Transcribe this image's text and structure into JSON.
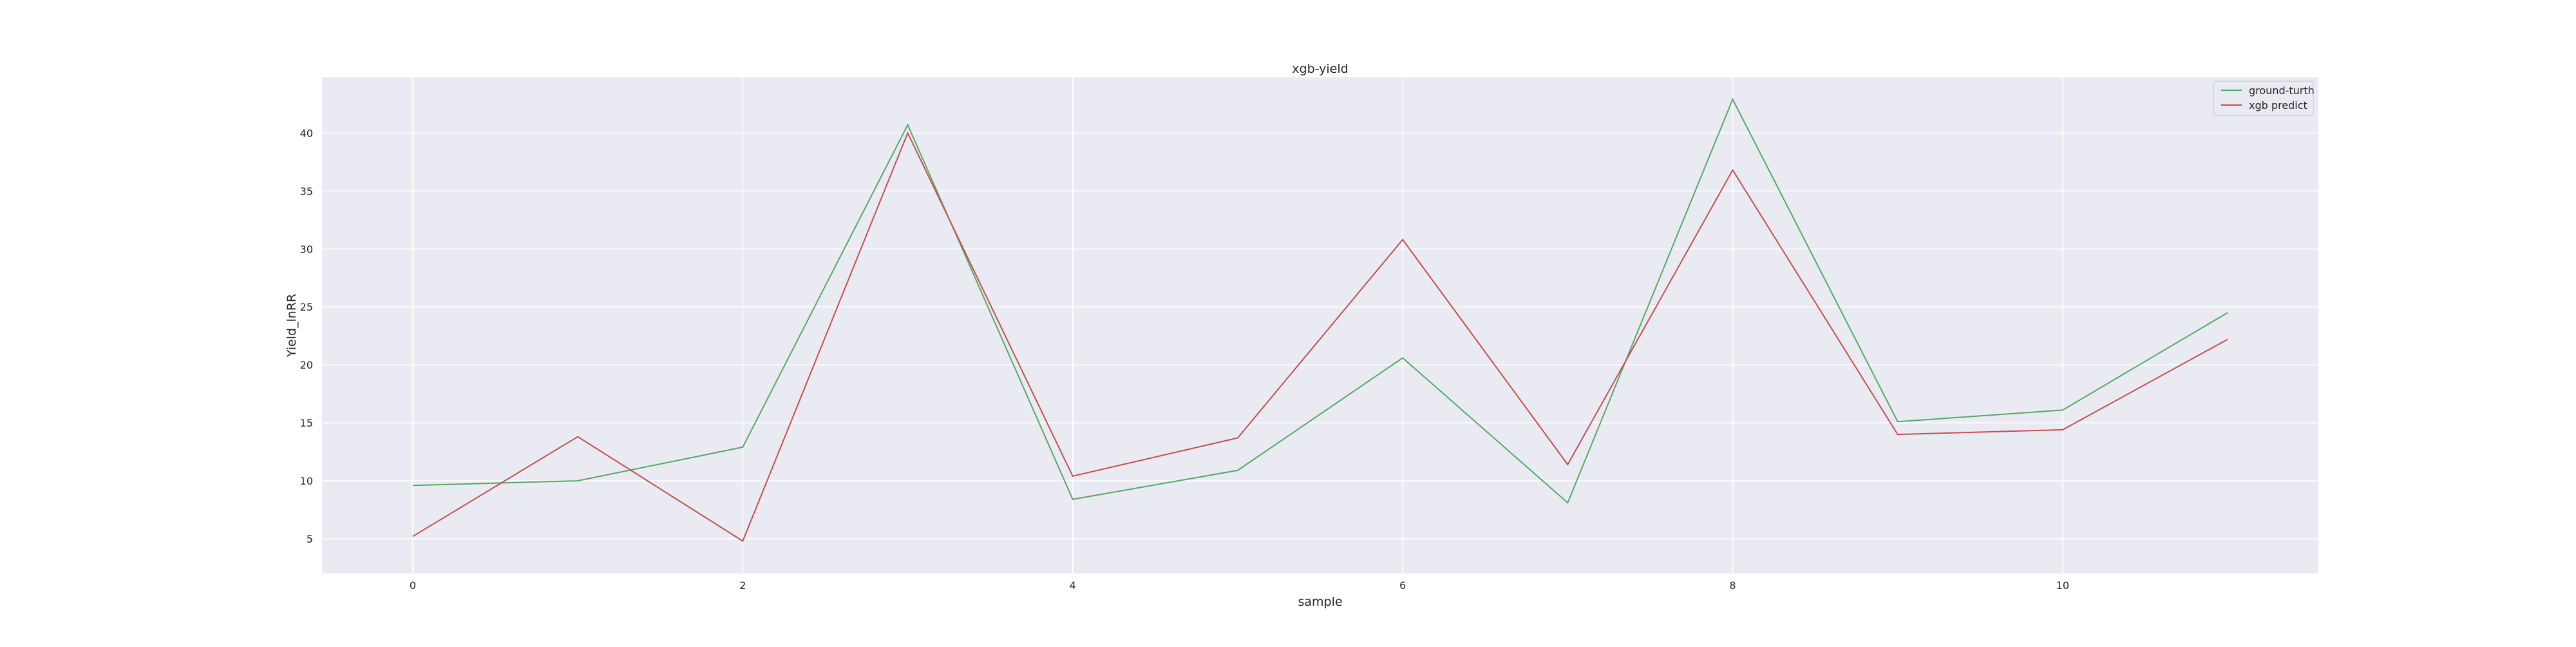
{
  "chart_data": {
    "type": "line",
    "title": "xgb-yield",
    "xlabel": "sample",
    "ylabel": "Yield_lnRR",
    "xlim": [
      -0.55,
      11.55
    ],
    "ylim": [
      2.0,
      44.8
    ],
    "xticks": [
      0,
      2,
      4,
      6,
      8,
      10
    ],
    "yticks": [
      5,
      10,
      15,
      20,
      25,
      30,
      35,
      40
    ],
    "grid": true,
    "legend_position": "top-right",
    "background_color": "#eaeaf2",
    "grid_color": "#ffffff",
    "x": [
      0,
      1,
      2,
      3,
      4,
      5,
      6,
      7,
      8,
      9,
      10,
      11
    ],
    "series": [
      {
        "name": "ground-turth",
        "color": "#55a868",
        "values": [
          9.6,
          10.0,
          12.9,
          40.7,
          8.4,
          10.9,
          20.6,
          8.1,
          42.9,
          15.1,
          16.1,
          24.5
        ]
      },
      {
        "name": "xgb predict",
        "color": "#c44e52",
        "values": [
          5.2,
          13.8,
          4.8,
          40.0,
          10.4,
          13.7,
          30.8,
          11.4,
          36.8,
          14.0,
          14.4,
          22.2
        ]
      }
    ]
  }
}
